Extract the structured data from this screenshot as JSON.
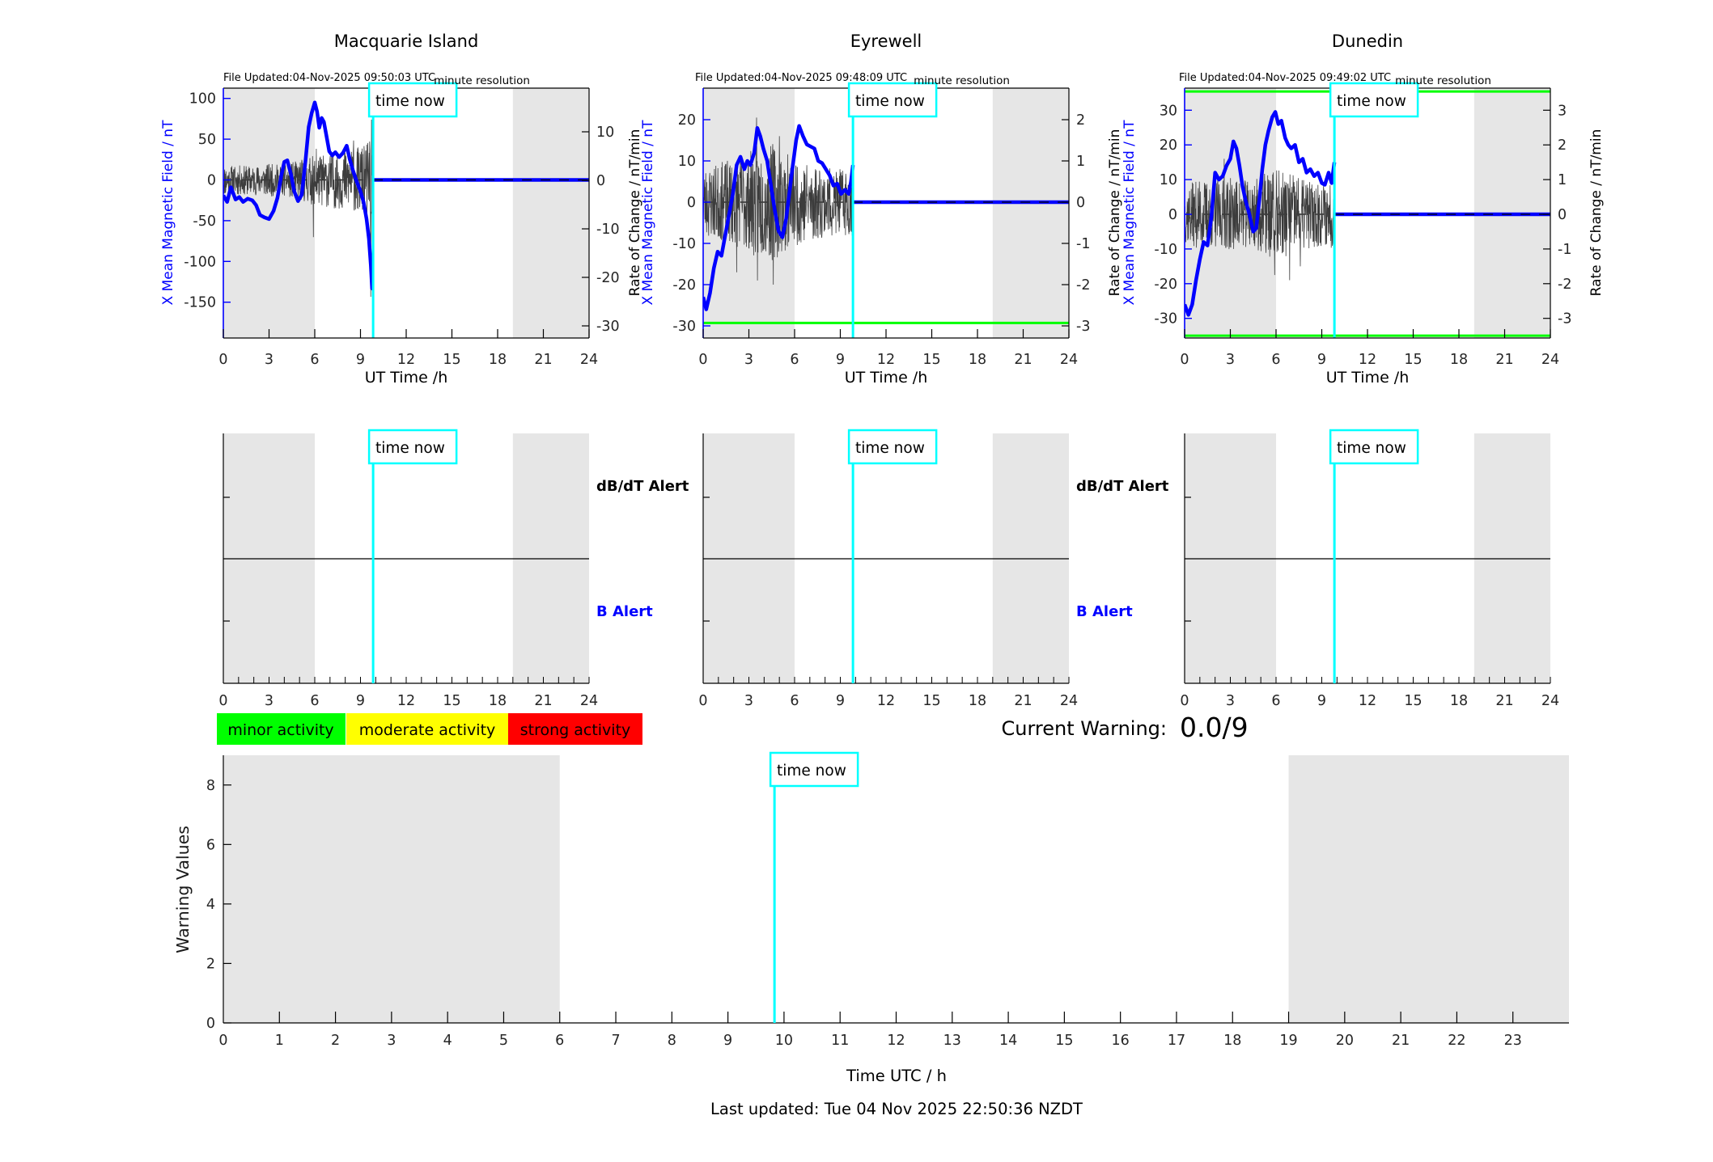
{
  "labels": {
    "time_now": "time now"
  },
  "colors": {
    "series_blue": "#0000ff",
    "noise_gray": "#3c3c3c",
    "time_now_cyan": "#00ffff",
    "shading_gray": "#e6e6e6",
    "threshold_green": "#00ff00",
    "alert_b_blue": "#0000ff",
    "tick_text": "#262626"
  },
  "legend": {
    "items": [
      {
        "label": "minor activity",
        "color": "#00ff00"
      },
      {
        "label": "moderate activity",
        "color": "#ffff00"
      },
      {
        "label": "strong activity",
        "color": "#ff0000"
      }
    ]
  },
  "current_warning": {
    "label": "Current Warning:",
    "value": "0.0/9"
  },
  "footer": {
    "last_updated": "Last updated: Tue 04 Nov 2025 22:50:36 NZDT"
  },
  "chart_data": [
    {
      "id": "macquarie-island-field",
      "type": "line",
      "title": "Macquarie Island",
      "file_updated": "File Updated:04-Nov-2025 09:50:03 UTC",
      "annotation": "minute resolution",
      "xlabel": "UT Time /h",
      "xlim": [
        0,
        24
      ],
      "x_ticks": [
        0,
        3,
        6,
        9,
        12,
        15,
        18,
        21,
        24
      ],
      "shaded_hours": [
        [
          0,
          6
        ],
        [
          19,
          24
        ]
      ],
      "time_now_h": 9.83,
      "left_axis": {
        "label": "X Mean Magnetic Field / nT",
        "ticks": [
          100,
          50,
          0,
          -50,
          -100,
          -150
        ],
        "units": "nT"
      },
      "right_axis": {
        "label": "Rate of Change / nT/min",
        "ticks": [
          10,
          0,
          -10,
          -20,
          -30
        ],
        "units": "nT/min"
      },
      "field_series": {
        "x": [
          0,
          0.25,
          0.5,
          0.8,
          1.05,
          1.3,
          1.6,
          1.9,
          2.15,
          2.4,
          2.7,
          3.0,
          3.3,
          3.55,
          3.8,
          4.0,
          4.2,
          4.45,
          4.65,
          4.9,
          5.15,
          5.4,
          5.6,
          5.8,
          6.0,
          6.15,
          6.3,
          6.45,
          6.6,
          6.75,
          6.95,
          7.15,
          7.35,
          7.6,
          7.85,
          8.1,
          8.3,
          8.5,
          8.75,
          9.0,
          9.2,
          9.4,
          9.55,
          9.68,
          9.76,
          9.83
        ],
        "y": [
          -19,
          -27,
          -9,
          -24,
          -21,
          -27,
          -23,
          -25,
          -31,
          -43,
          -46,
          -48,
          -38,
          -22,
          5,
          22,
          24,
          6,
          -14,
          -26,
          -18,
          25,
          65,
          82,
          95,
          84,
          64,
          76,
          71,
          56,
          35,
          30,
          34,
          28,
          33,
          42,
          25,
          12,
          -2,
          -14,
          -27,
          -48,
          -72,
          -105,
          -133,
          -134
        ]
      },
      "flat_value_after_time_now": 0,
      "thresholds_right": [],
      "noise": {
        "seed": 11,
        "points": 560,
        "envelope": [
          [
            0,
            3.2
          ],
          [
            2,
            3.0
          ],
          [
            3,
            3.4
          ],
          [
            4,
            3.3
          ],
          [
            5,
            4.2
          ],
          [
            6,
            5.2
          ],
          [
            7,
            5.6
          ],
          [
            8,
            6.2
          ],
          [
            8.7,
            6.6
          ],
          [
            9.3,
            7.5
          ],
          [
            9.83,
            8.5
          ]
        ],
        "spikes": [
          [
            5.9,
            -11.7
          ],
          [
            6.1,
            6.5
          ],
          [
            8.55,
            8.2
          ],
          [
            9.6,
            8.0
          ],
          [
            9.68,
            -24
          ],
          [
            9.72,
            12.5
          ],
          [
            9.78,
            -19
          ]
        ]
      }
    },
    {
      "id": "eyrewell-field",
      "type": "line",
      "title": "Eyrewell",
      "file_updated": "File Updated:04-Nov-2025 09:48:09 UTC",
      "annotation": "minute resolution",
      "xlabel": "UT Time /h",
      "xlim": [
        0,
        24
      ],
      "x_ticks": [
        0,
        3,
        6,
        9,
        12,
        15,
        18,
        21,
        24
      ],
      "shaded_hours": [
        [
          0,
          6
        ],
        [
          19,
          24
        ]
      ],
      "time_now_h": 9.83,
      "left_axis": {
        "label": "X Mean Magnetic Field / nT",
        "ticks": [
          20,
          10,
          0,
          -10,
          -20,
          -30
        ],
        "units": "nT"
      },
      "right_axis": {
        "label": "Rate of Change / nT/min",
        "ticks": [
          2,
          1,
          0,
          -1,
          -2,
          -3
        ],
        "units": "nT/min"
      },
      "field_series": {
        "x": [
          0,
          0.2,
          0.45,
          0.7,
          0.95,
          1.2,
          1.45,
          1.7,
          1.95,
          2.2,
          2.45,
          2.7,
          2.9,
          3.1,
          3.35,
          3.55,
          3.75,
          3.95,
          4.2,
          4.45,
          4.7,
          4.95,
          5.2,
          5.45,
          5.65,
          5.85,
          6.1,
          6.3,
          6.55,
          6.8,
          7.05,
          7.3,
          7.55,
          7.8,
          8.05,
          8.3,
          8.55,
          8.8,
          9.05,
          9.3,
          9.55,
          9.7,
          9.83
        ],
        "y": [
          -23,
          -26,
          -22,
          -16,
          -12,
          -13,
          -8,
          -3,
          2,
          9,
          11,
          8,
          10,
          9,
          12,
          18,
          16,
          13,
          10,
          4,
          -2,
          -7,
          -8.5,
          -4,
          2,
          8,
          15,
          18.5,
          16,
          14,
          13.5,
          13,
          10,
          9.5,
          8,
          6.5,
          4,
          4.5,
          2,
          3,
          2,
          5,
          9
        ]
      },
      "flat_value_after_time_now": 0,
      "thresholds_right": [
        -2.93
      ],
      "noise": {
        "seed": 23,
        "points": 520,
        "envelope": [
          [
            0,
            0.85
          ],
          [
            1,
            0.95
          ],
          [
            2,
            1.05
          ],
          [
            3,
            1.2
          ],
          [
            3.6,
            1.45
          ],
          [
            4,
            1.3
          ],
          [
            4.6,
            1.45
          ],
          [
            5.2,
            1.25
          ],
          [
            6,
            1.05
          ],
          [
            7,
            1.0
          ],
          [
            8,
            0.85
          ],
          [
            9,
            0.8
          ],
          [
            9.83,
            0.85
          ]
        ],
        "spikes": [
          [
            2.2,
            -1.7
          ],
          [
            3.5,
            2.05
          ],
          [
            3.56,
            -1.9
          ],
          [
            4.6,
            -2.0
          ],
          [
            5.0,
            1.6
          ]
        ]
      }
    },
    {
      "id": "dunedin-field",
      "type": "line",
      "title": "Dunedin",
      "file_updated": "File Updated:04-Nov-2025 09:49:02 UTC",
      "annotation": "minute resolution",
      "xlabel": "UT Time /h",
      "xlim": [
        0,
        24
      ],
      "x_ticks": [
        0,
        3,
        6,
        9,
        12,
        15,
        18,
        21,
        24
      ],
      "shaded_hours": [
        [
          0,
          6
        ],
        [
          19,
          24
        ]
      ],
      "time_now_h": 9.83,
      "left_axis": {
        "label": "X Mean Magnetic Field / nT",
        "ticks": [
          30,
          20,
          10,
          0,
          -10,
          -20,
          -30
        ],
        "units": "nT"
      },
      "right_axis": {
        "label": "Rate of Change / nT/min",
        "ticks": [
          3,
          2,
          1,
          0,
          -1,
          -2,
          -3
        ],
        "units": "nT/min"
      },
      "field_series": {
        "x": [
          0,
          0.25,
          0.5,
          0.75,
          1.0,
          1.25,
          1.5,
          1.75,
          2.0,
          2.25,
          2.5,
          2.75,
          3.0,
          3.2,
          3.4,
          3.6,
          3.8,
          4.0,
          4.25,
          4.5,
          4.7,
          4.9,
          5.1,
          5.3,
          5.5,
          5.75,
          5.95,
          6.15,
          6.35,
          6.6,
          6.8,
          7.0,
          7.25,
          7.5,
          7.75,
          8.0,
          8.25,
          8.5,
          8.75,
          9.0,
          9.2,
          9.45,
          9.65,
          9.83
        ],
        "y": [
          -26,
          -29,
          -26,
          -19,
          -13,
          -8,
          -9,
          -1,
          12,
          10,
          11,
          14,
          16,
          21,
          19,
          14,
          8,
          4,
          0,
          -5,
          -4,
          4,
          13,
          20,
          24,
          28,
          29.5,
          26,
          27,
          22,
          20,
          19,
          20,
          15,
          16,
          12,
          13,
          11,
          12,
          9,
          8.5,
          12,
          9,
          15
        ]
      },
      "flat_value_after_time_now": 0,
      "thresholds_right": [
        3.54,
        -3.5
      ],
      "noise": {
        "seed": 37,
        "points": 520,
        "envelope": [
          [
            0,
            0.85
          ],
          [
            1,
            1.0
          ],
          [
            2,
            1.0
          ],
          [
            3,
            1.05
          ],
          [
            4,
            1.0
          ],
          [
            5,
            1.1
          ],
          [
            5.6,
            1.35
          ],
          [
            6.5,
            1.25
          ],
          [
            7,
            1.2
          ],
          [
            8,
            1.0
          ],
          [
            9,
            0.95
          ],
          [
            9.83,
            1.0
          ]
        ],
        "spikes": [
          [
            2.6,
            1.6
          ],
          [
            5.9,
            -1.75
          ],
          [
            6.9,
            -1.9
          ],
          [
            7.6,
            -1.5
          ]
        ]
      }
    },
    {
      "id": "macquarie-island-alerts",
      "type": "timeline",
      "xlim": [
        0,
        24
      ],
      "x_ticks": [
        0,
        3,
        6,
        9,
        12,
        15,
        18,
        21,
        24
      ],
      "shaded_hours": [
        [
          0,
          6
        ],
        [
          19,
          24
        ]
      ],
      "time_now_h": 9.83,
      "row_labels": [
        {
          "text": "dB/dT Alert",
          "color": "#000000"
        },
        {
          "text": "B Alert",
          "color": "#0000ff"
        }
      ],
      "events": []
    },
    {
      "id": "eyrewell-alerts",
      "type": "timeline",
      "xlim": [
        0,
        24
      ],
      "x_ticks": [
        0,
        3,
        6,
        9,
        12,
        15,
        18,
        21,
        24
      ],
      "shaded_hours": [
        [
          0,
          6
        ],
        [
          19,
          24
        ]
      ],
      "time_now_h": 9.83,
      "row_labels": [
        {
          "text": "dB/dT Alert",
          "color": "#000000"
        },
        {
          "text": "B Alert",
          "color": "#0000ff"
        }
      ],
      "events": []
    },
    {
      "id": "dunedin-alerts",
      "type": "timeline",
      "xlim": [
        0,
        24
      ],
      "x_ticks": [
        0,
        3,
        6,
        9,
        12,
        15,
        18,
        21,
        24
      ],
      "shaded_hours": [
        [
          0,
          6
        ],
        [
          19,
          24
        ]
      ],
      "time_now_h": 9.83,
      "row_labels": [],
      "events": []
    },
    {
      "id": "warning-values",
      "type": "line",
      "ylabel": "Warning Values",
      "xlabel": "Time UTC / h",
      "ylim": [
        0,
        9
      ],
      "y_ticks": [
        0,
        2,
        4,
        6,
        8
      ],
      "xlim": [
        0,
        24
      ],
      "x_ticks": [
        0,
        1,
        2,
        3,
        4,
        5,
        6,
        7,
        8,
        9,
        10,
        11,
        12,
        13,
        14,
        15,
        16,
        17,
        18,
        19,
        20,
        21,
        22,
        23
      ],
      "shaded_hours": [
        [
          0,
          6
        ],
        [
          19,
          24
        ]
      ],
      "time_now_h": 9.83,
      "series": {
        "x": [],
        "y": []
      }
    }
  ]
}
